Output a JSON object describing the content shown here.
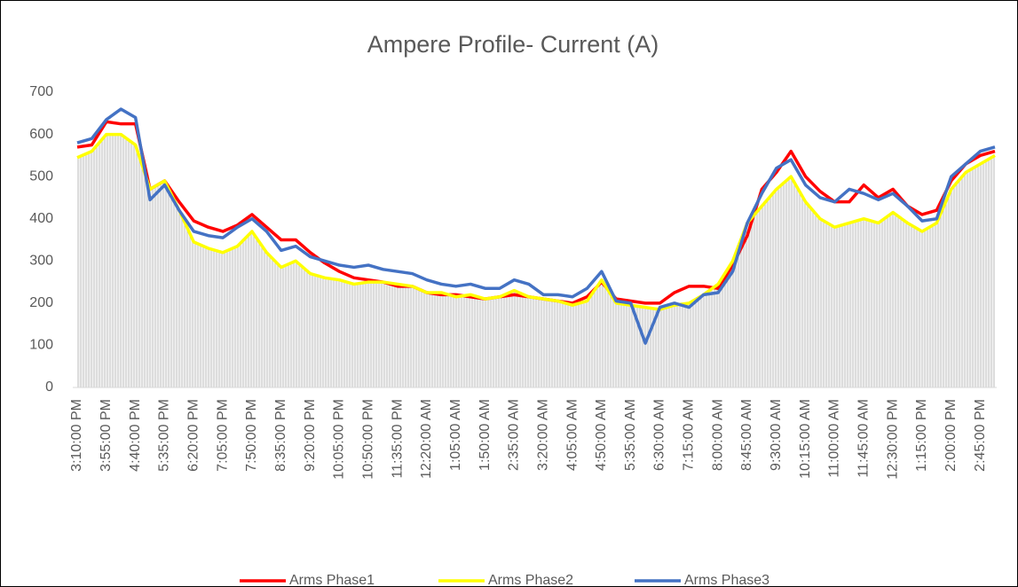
{
  "chart_data": {
    "type": "line",
    "title": "Ampere Profile- Current (A)",
    "categories": [
      "3:10:00 PM",
      null,
      "3:55:00 PM",
      null,
      "4:40:00 PM",
      null,
      "5:35:00 PM",
      null,
      "6:20:00 PM",
      null,
      "7:05:00 PM",
      null,
      "7:50:00 PM",
      null,
      "8:35:00 PM",
      null,
      "9:20:00 PM",
      null,
      "10:05:00 PM",
      null,
      "10:50:00 PM",
      null,
      "11:35:00 PM",
      null,
      "12:20:00 AM",
      null,
      "1:05:00 AM",
      null,
      "1:50:00 AM",
      null,
      "2:35:00 AM",
      null,
      "3:20:00 AM",
      null,
      "4:05:00 AM",
      null,
      "4:50:00 AM",
      null,
      "5:35:00 AM",
      null,
      "6:30:00 AM",
      null,
      "7:15:00 AM",
      null,
      "8:00:00 AM",
      null,
      "8:45:00 AM",
      null,
      "9:30:00 AM",
      null,
      "10:15:00 AM",
      null,
      "11:00:00 AM",
      null,
      "11:45:00 AM",
      null,
      "12:30:00 PM",
      null,
      "1:15:00 PM",
      null,
      "2:00:00 PM",
      null,
      "2:45:00 PM",
      null
    ],
    "series": [
      {
        "name": "Arms Phase1",
        "color": "#ff0000",
        "values": [
          570,
          575,
          630,
          625,
          625,
          470,
          490,
          440,
          395,
          380,
          370,
          385,
          410,
          380,
          350,
          350,
          320,
          295,
          275,
          260,
          255,
          250,
          240,
          240,
          225,
          220,
          220,
          215,
          210,
          215,
          220,
          215,
          210,
          205,
          200,
          215,
          250,
          210,
          205,
          200,
          200,
          225,
          240,
          240,
          235,
          290,
          360,
          470,
          510,
          560,
          500,
          465,
          440,
          440,
          480,
          450,
          470,
          430,
          410,
          420,
          490,
          530,
          550,
          560
        ]
      },
      {
        "name": "Arms Phase2",
        "color": "#ffff00",
        "values": [
          545,
          560,
          600,
          600,
          575,
          470,
          490,
          420,
          345,
          330,
          320,
          335,
          370,
          320,
          285,
          300,
          270,
          260,
          255,
          245,
          250,
          250,
          245,
          240,
          225,
          225,
          215,
          220,
          210,
          215,
          230,
          215,
          210,
          205,
          195,
          205,
          255,
          200,
          195,
          190,
          185,
          195,
          200,
          220,
          245,
          300,
          390,
          430,
          470,
          500,
          440,
          400,
          380,
          390,
          400,
          390,
          415,
          390,
          370,
          390,
          470,
          510,
          530,
          550
        ]
      },
      {
        "name": "Arms Phase3",
        "color": "#4472c4",
        "values": [
          580,
          590,
          635,
          660,
          640,
          445,
          480,
          420,
          370,
          360,
          355,
          380,
          400,
          370,
          325,
          335,
          310,
          300,
          290,
          285,
          290,
          280,
          275,
          270,
          255,
          245,
          240,
          245,
          235,
          235,
          255,
          245,
          220,
          220,
          215,
          235,
          275,
          205,
          200,
          105,
          190,
          200,
          190,
          220,
          225,
          275,
          390,
          460,
          520,
          540,
          480,
          450,
          440,
          470,
          460,
          445,
          460,
          430,
          395,
          400,
          500,
          530,
          560,
          570
        ]
      }
    ],
    "ylim": [
      0,
      700
    ],
    "yticks": [
      0,
      100,
      200,
      300,
      400,
      500,
      600,
      700
    ],
    "grid": false,
    "legend": "bottom",
    "area_color": "#c8c8c8"
  }
}
